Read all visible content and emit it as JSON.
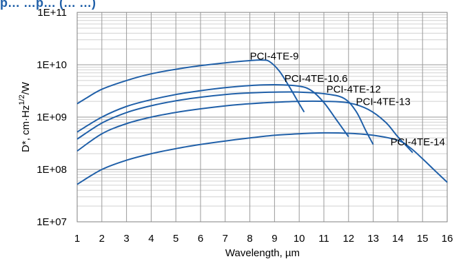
{
  "chart_data": {
    "type": "line",
    "title": "p… …p…  (… …)",
    "xlabel": "Wavelength, µm",
    "ylabel_main": "D*, cm·Hz",
    "ylabel_sup": "1/2",
    "ylabel_tail": "/W",
    "x_ticks": [
      "1",
      "2",
      "3",
      "4",
      "5",
      "6",
      "7",
      "8",
      "9",
      "10",
      "11",
      "12",
      "13",
      "14",
      "15",
      "16"
    ],
    "y_ticks": [
      "1E+07",
      "1E+08",
      "1E+09",
      "1E+10",
      "1E+11"
    ],
    "xlim": [
      1,
      16
    ],
    "ylim": [
      10000000,
      100000000000
    ],
    "y_scale": "log",
    "grid": true,
    "line_color": "#1f5fa8",
    "series": [
      {
        "name": "PCI-4TE-9",
        "label_at": [
          8.0,
          12500000000
        ],
        "x": [
          1,
          1.3,
          2,
          3,
          4,
          5,
          6,
          7,
          8,
          8.5,
          8.8,
          9.2,
          9.6,
          10,
          10.2
        ],
        "y": [
          1800000000,
          2200000000,
          3400000000,
          5000000000,
          6700000000,
          8200000000,
          9600000000,
          10900000000,
          12000000000,
          12300000000,
          11500000000,
          7500000000,
          3800000000,
          1800000000,
          1250000000
        ]
      },
      {
        "name": "PCI-4TE-10.6",
        "label_at": [
          9.4,
          4700000000
        ],
        "x": [
          1,
          2,
          3,
          4,
          5,
          6,
          7,
          8,
          9,
          10,
          10.5,
          11,
          11.5,
          12
        ],
        "y": [
          520000000,
          1000000000,
          1600000000,
          2150000000,
          2700000000,
          3200000000,
          3650000000,
          4000000000,
          4150000000,
          3900000000,
          3200000000,
          1900000000,
          900000000,
          420000000
        ]
      },
      {
        "name": "PCI-4TE-12",
        "label_at": [
          11.1,
          2950000000
        ],
        "x": [
          1,
          2,
          3,
          4,
          5,
          6,
          7,
          8,
          9,
          10,
          11,
          11.8,
          12.3,
          12.7,
          13
        ],
        "y": [
          380000000,
          770000000,
          1220000000,
          1650000000,
          2050000000,
          2400000000,
          2700000000,
          2900000000,
          3000000000,
          3000000000,
          2800000000,
          2300000000,
          1300000000,
          550000000,
          300000000
        ]
      },
      {
        "name": "PCI-4TE-13",
        "label_at": [
          12.3,
          1700000000
        ],
        "x": [
          1,
          2,
          3,
          4,
          5,
          6,
          7,
          8,
          9,
          10,
          11,
          12,
          12.8,
          13.5,
          14,
          14.6
        ],
        "y": [
          225000000,
          480000000,
          750000000,
          1000000000,
          1230000000,
          1440000000,
          1640000000,
          1800000000,
          1920000000,
          2000000000,
          2000000000,
          1870000000,
          1400000000,
          800000000,
          420000000,
          210000000
        ]
      },
      {
        "name": "PCI-4TE-14",
        "label_at": [
          13.7,
          290000000
        ],
        "x": [
          1,
          2,
          3,
          4,
          5,
          6,
          7,
          8,
          9,
          10,
          11,
          12,
          13,
          14,
          14.5,
          15,
          15.5,
          16
        ],
        "y": [
          52000000,
          100000000,
          150000000,
          200000000,
          250000000,
          300000000,
          350000000,
          400000000,
          450000000,
          480000000,
          500000000,
          490000000,
          450000000,
          360000000,
          260000000,
          160000000,
          95000000,
          57000000
        ]
      }
    ]
  }
}
